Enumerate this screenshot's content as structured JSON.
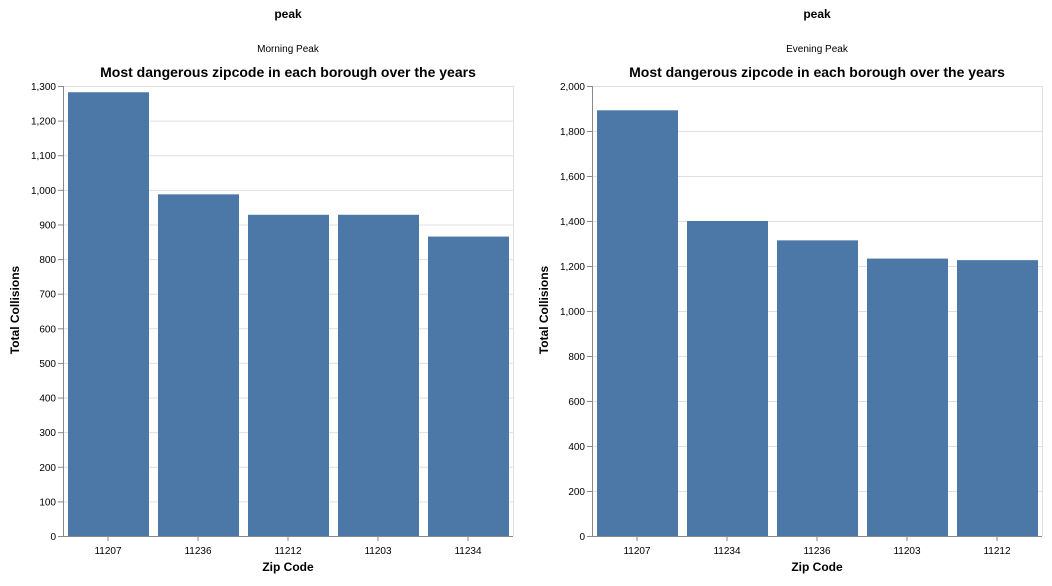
{
  "chart_data": [
    {
      "type": "bar",
      "facet_header": "peak",
      "facet_label": "Morning Peak",
      "title": "Most dangerous zipcode in each borough over the years",
      "xlabel": "Zip Code",
      "ylabel": "Total Collisions",
      "categories": [
        "11207",
        "11236",
        "11212",
        "11203",
        "11234"
      ],
      "values": [
        1282,
        987,
        928,
        928,
        865
      ],
      "ylim": [
        0,
        1300
      ],
      "yticks": [
        0,
        100,
        200,
        300,
        400,
        500,
        600,
        700,
        800,
        900,
        1000,
        1100,
        1200,
        1300
      ],
      "ytick_labels": [
        "0",
        "100",
        "200",
        "300",
        "400",
        "500",
        "600",
        "700",
        "800",
        "900",
        "1,000",
        "1,100",
        "1,200",
        "1,300"
      ],
      "grid": true,
      "color": "#4c78a8"
    },
    {
      "type": "bar",
      "facet_header": "peak",
      "facet_label": "Evening Peak",
      "title": "Most dangerous zipcode in each borough over the years",
      "xlabel": "Zip Code",
      "ylabel": "Total Collisions",
      "categories": [
        "11207",
        "11234",
        "11236",
        "11203",
        "11212"
      ],
      "values": [
        1892,
        1400,
        1314,
        1233,
        1226
      ],
      "ylim": [
        0,
        2000
      ],
      "yticks": [
        0,
        200,
        400,
        600,
        800,
        1000,
        1200,
        1400,
        1600,
        1800,
        2000
      ],
      "ytick_labels": [
        "0",
        "200",
        "400",
        "600",
        "800",
        "1,000",
        "1,200",
        "1,400",
        "1,600",
        "1,800",
        "2,000"
      ],
      "grid": true,
      "color": "#4c78a8"
    }
  ]
}
